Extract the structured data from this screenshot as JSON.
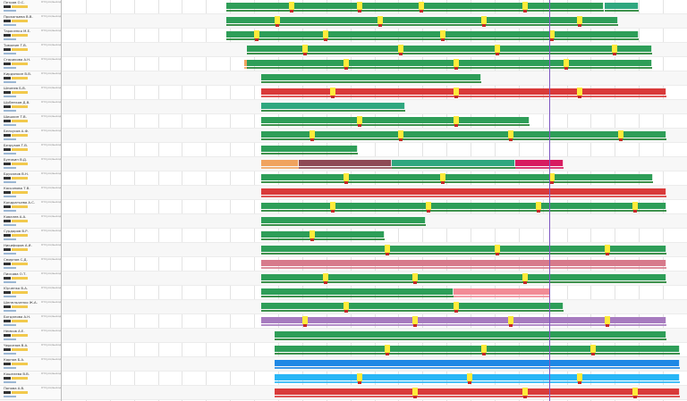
{
  "colors": {
    "green": "#2e9e58",
    "teal": "#2fa77f",
    "red": "#d93a3a",
    "purple": "#a77bbf",
    "pink": "#d77a8b",
    "lightpink": "#f28b96",
    "blue": "#1e88e5",
    "lightblue": "#29b6f6",
    "orange": "#f0a35e",
    "maroon": "#8e4a55",
    "crimson": "#d81b60",
    "yellow": "#ffeb3b",
    "subgreen": "#1c7f2e",
    "now": "#7e57c2"
  },
  "employees": [
    {
      "name": "Петров О.С.",
      "status": "Отпуск/выход"
    },
    {
      "name": "Прокопьева В.В.",
      "status": "Отпуск/выход"
    },
    {
      "name": "Тарасенко М.Е.",
      "status": "Отпуск/выход"
    },
    {
      "name": "Тимонин Т.В.",
      "status": "Отпуск/выход"
    },
    {
      "name": "Старикова А.Н.",
      "status": "Отпуск/выход"
    },
    {
      "name": "Кирдяпкин В.В.",
      "status": "Отпуск/выход"
    },
    {
      "name": "Шпинев Б.В.",
      "status": "Отпуск/выход"
    },
    {
      "name": "Шубенков Д.В.",
      "status": "Отпуск/выход"
    },
    {
      "name": "Шишкин Т.В.",
      "status": "Отпуск/выход"
    },
    {
      "name": "Белоусов А.Ф.",
      "status": "Отпуск/выход"
    },
    {
      "name": "Безруков Т.В.",
      "status": "Отпуск/выход"
    },
    {
      "name": "Бунякин В.Д.",
      "status": "Отпуск/выход"
    },
    {
      "name": "Бруханов В.Н.",
      "status": "Отпуск/выход"
    },
    {
      "name": "Касьянова Т.В.",
      "status": "Отпуск/выход"
    },
    {
      "name": "Кондратьева А.С.",
      "status": "Отпуск/выход"
    },
    {
      "name": "Ковалев А.А.",
      "status": "Отпуск/выход"
    },
    {
      "name": "Сурдоров В.Р.",
      "status": "Отпуск/выход"
    },
    {
      "name": "Никифоров А.И.",
      "status": "Отпуск/выход"
    },
    {
      "name": "Смирнов С.Д.",
      "status": "Отпуск/выход"
    },
    {
      "name": "Пискова О.Т.",
      "status": "Отпуск/выход"
    },
    {
      "name": "Юрченко В.А.",
      "status": "Отпуск/выход"
    },
    {
      "name": "Шепельченко Ж.А.",
      "status": "Отпуск/выход"
    },
    {
      "name": "Богданова А.Н.",
      "status": "Отпуск/выход"
    },
    {
      "name": "Немков А.Е.",
      "status": "Отпуск/выход"
    },
    {
      "name": "Черкезов В.А.",
      "status": "Отпуск/выход"
    },
    {
      "name": "Карпов Б.А.",
      "status": "Отпуск/выход"
    },
    {
      "name": "Кошелева В.В.",
      "status": "Отпуск/выход"
    },
    {
      "name": "Попова А.В.",
      "status": "Отпуск/выход"
    }
  ],
  "bars": [
    {
      "row": 0,
      "start": 0.33,
      "end": 0.88,
      "color": "green"
    },
    {
      "row": 0,
      "start": 0.88,
      "end": 0.93,
      "color": "teal"
    },
    {
      "row": 1,
      "start": 0.33,
      "end": 0.9,
      "color": "green"
    },
    {
      "row": 2,
      "start": 0.33,
      "end": 0.93,
      "color": "green"
    },
    {
      "row": 3,
      "start": 0.36,
      "end": 0.95,
      "color": "green"
    },
    {
      "row": 4,
      "start": 0.355,
      "end": 0.36,
      "color": "orange"
    },
    {
      "row": 4,
      "start": 0.36,
      "end": 0.95,
      "color": "green"
    },
    {
      "row": 5,
      "start": 0.38,
      "end": 0.7,
      "color": "green"
    },
    {
      "row": 6,
      "start": 0.38,
      "end": 0.97,
      "color": "red"
    },
    {
      "row": 7,
      "start": 0.38,
      "end": 0.59,
      "color": "teal"
    },
    {
      "row": 8,
      "start": 0.38,
      "end": 0.77,
      "color": "green"
    },
    {
      "row": 9,
      "start": 0.38,
      "end": 0.97,
      "color": "green"
    },
    {
      "row": 10,
      "start": 0.38,
      "end": 0.52,
      "color": "green"
    },
    {
      "row": 11,
      "start": 0.38,
      "end": 0.435,
      "color": "orange"
    },
    {
      "row": 11,
      "start": 0.435,
      "end": 0.57,
      "color": "maroon"
    },
    {
      "row": 11,
      "start": 0.57,
      "end": 0.75,
      "color": "teal"
    },
    {
      "row": 11,
      "start": 0.75,
      "end": 0.82,
      "color": "crimson"
    },
    {
      "row": 12,
      "start": 0.38,
      "end": 0.95,
      "color": "green"
    },
    {
      "row": 13,
      "start": 0.38,
      "end": 0.97,
      "color": "red"
    },
    {
      "row": 14,
      "start": 0.38,
      "end": 0.97,
      "color": "green"
    },
    {
      "row": 15,
      "start": 0.38,
      "end": 0.62,
      "color": "green"
    },
    {
      "row": 16,
      "start": 0.38,
      "end": 0.56,
      "color": "green"
    },
    {
      "row": 17,
      "start": 0.38,
      "end": 0.97,
      "color": "green"
    },
    {
      "row": 18,
      "start": 0.38,
      "end": 0.97,
      "color": "pink"
    },
    {
      "row": 19,
      "start": 0.38,
      "end": 0.97,
      "color": "green"
    },
    {
      "row": 20,
      "start": 0.38,
      "end": 0.66,
      "color": "green"
    },
    {
      "row": 20,
      "start": 0.66,
      "end": 0.8,
      "color": "lightpink"
    },
    {
      "row": 21,
      "start": 0.38,
      "end": 0.82,
      "color": "green"
    },
    {
      "row": 22,
      "start": 0.38,
      "end": 0.97,
      "color": "purple"
    },
    {
      "row": 23,
      "start": 0.4,
      "end": 0.97,
      "color": "green"
    },
    {
      "row": 24,
      "start": 0.4,
      "end": 0.99,
      "color": "green"
    },
    {
      "row": 25,
      "start": 0.4,
      "end": 0.99,
      "color": "blue"
    },
    {
      "row": 26,
      "start": 0.4,
      "end": 0.99,
      "color": "lightblue"
    },
    {
      "row": 27,
      "start": 0.4,
      "end": 0.99,
      "color": "red"
    }
  ],
  "markers": [
    {
      "row": 0,
      "pos": 0.42
    },
    {
      "row": 0,
      "pos": 0.52
    },
    {
      "row": 0,
      "pos": 0.61
    },
    {
      "row": 0,
      "pos": 0.76
    },
    {
      "row": 1,
      "pos": 0.4
    },
    {
      "row": 1,
      "pos": 0.55
    },
    {
      "row": 1,
      "pos": 0.7
    },
    {
      "row": 1,
      "pos": 0.84
    },
    {
      "row": 2,
      "pos": 0.37
    },
    {
      "row": 2,
      "pos": 0.47
    },
    {
      "row": 2,
      "pos": 0.64
    },
    {
      "row": 2,
      "pos": 0.8
    },
    {
      "row": 3,
      "pos": 0.44
    },
    {
      "row": 3,
      "pos": 0.58
    },
    {
      "row": 3,
      "pos": 0.72
    },
    {
      "row": 3,
      "pos": 0.89
    },
    {
      "row": 4,
      "pos": 0.5
    },
    {
      "row": 4,
      "pos": 0.66
    },
    {
      "row": 4,
      "pos": 0.82
    },
    {
      "row": 6,
      "pos": 0.48
    },
    {
      "row": 6,
      "pos": 0.66
    },
    {
      "row": 6,
      "pos": 0.84
    },
    {
      "row": 8,
      "pos": 0.52
    },
    {
      "row": 8,
      "pos": 0.66
    },
    {
      "row": 9,
      "pos": 0.45
    },
    {
      "row": 9,
      "pos": 0.58
    },
    {
      "row": 9,
      "pos": 0.74
    },
    {
      "row": 9,
      "pos": 0.9
    },
    {
      "row": 12,
      "pos": 0.5
    },
    {
      "row": 12,
      "pos": 0.64
    },
    {
      "row": 12,
      "pos": 0.8
    },
    {
      "row": 14,
      "pos": 0.48
    },
    {
      "row": 14,
      "pos": 0.62
    },
    {
      "row": 14,
      "pos": 0.78
    },
    {
      "row": 14,
      "pos": 0.92
    },
    {
      "row": 16,
      "pos": 0.45
    },
    {
      "row": 17,
      "pos": 0.56
    },
    {
      "row": 17,
      "pos": 0.72
    },
    {
      "row": 17,
      "pos": 0.88
    },
    {
      "row": 19,
      "pos": 0.47
    },
    {
      "row": 19,
      "pos": 0.6
    },
    {
      "row": 19,
      "pos": 0.76
    },
    {
      "row": 21,
      "pos": 0.5
    },
    {
      "row": 21,
      "pos": 0.66
    },
    {
      "row": 22,
      "pos": 0.44
    },
    {
      "row": 22,
      "pos": 0.6
    },
    {
      "row": 22,
      "pos": 0.74
    },
    {
      "row": 22,
      "pos": 0.88
    },
    {
      "row": 24,
      "pos": 0.56
    },
    {
      "row": 24,
      "pos": 0.7
    },
    {
      "row": 24,
      "pos": 0.86
    },
    {
      "row": 26,
      "pos": 0.52
    },
    {
      "row": 26,
      "pos": 0.68
    },
    {
      "row": 26,
      "pos": 0.84
    },
    {
      "row": 27,
      "pos": 0.6
    },
    {
      "row": 27,
      "pos": 0.76
    },
    {
      "row": 27,
      "pos": 0.92
    }
  ],
  "now_line_pos": 0.8
}
